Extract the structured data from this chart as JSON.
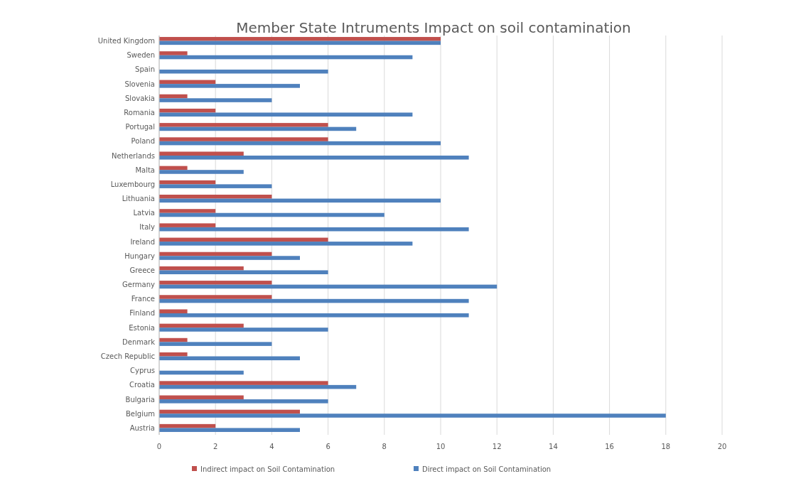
{
  "chart_data": {
    "type": "bar",
    "orientation": "horizontal",
    "title": "Member  State Intruments Impact on soil contamination",
    "categories": [
      "United Kingdom",
      "Sweden",
      "Spain",
      "Slovenia",
      "Slovakia",
      "Romania",
      "Portugal",
      "Poland",
      "Netherlands",
      "Malta",
      "Luxembourg",
      "Lithuania",
      "Latvia",
      "Italy",
      "Ireland",
      "Hungary",
      "Greece",
      "Germany",
      "France",
      "Finland",
      "Estonia",
      "Denmark",
      "Czech Republic",
      "Cyprus",
      "Croatia",
      "Bulgaria",
      "Belgium",
      "Austria"
    ],
    "series": [
      {
        "name": "Indirect impact on Soil Contamination",
        "color": "#c0504d",
        "values": [
          10,
          1,
          0,
          2,
          1,
          2,
          6,
          6,
          3,
          1,
          2,
          4,
          2,
          2,
          6,
          4,
          3,
          4,
          4,
          1,
          3,
          1,
          1,
          0,
          6,
          3,
          5,
          2
        ]
      },
      {
        "name": "Direct impact on Soil Contamination",
        "color": "#4f81bd",
        "values": [
          10,
          9,
          6,
          5,
          4,
          9,
          7,
          10,
          11,
          3,
          4,
          10,
          8,
          11,
          9,
          5,
          6,
          12,
          11,
          11,
          6,
          4,
          5,
          3,
          7,
          6,
          18,
          5
        ]
      }
    ],
    "xlim": [
      0,
      20
    ],
    "xticks": [
      0,
      2,
      4,
      6,
      8,
      10,
      12,
      14,
      16,
      18,
      20
    ],
    "grid": "x",
    "legend": "bottom"
  }
}
